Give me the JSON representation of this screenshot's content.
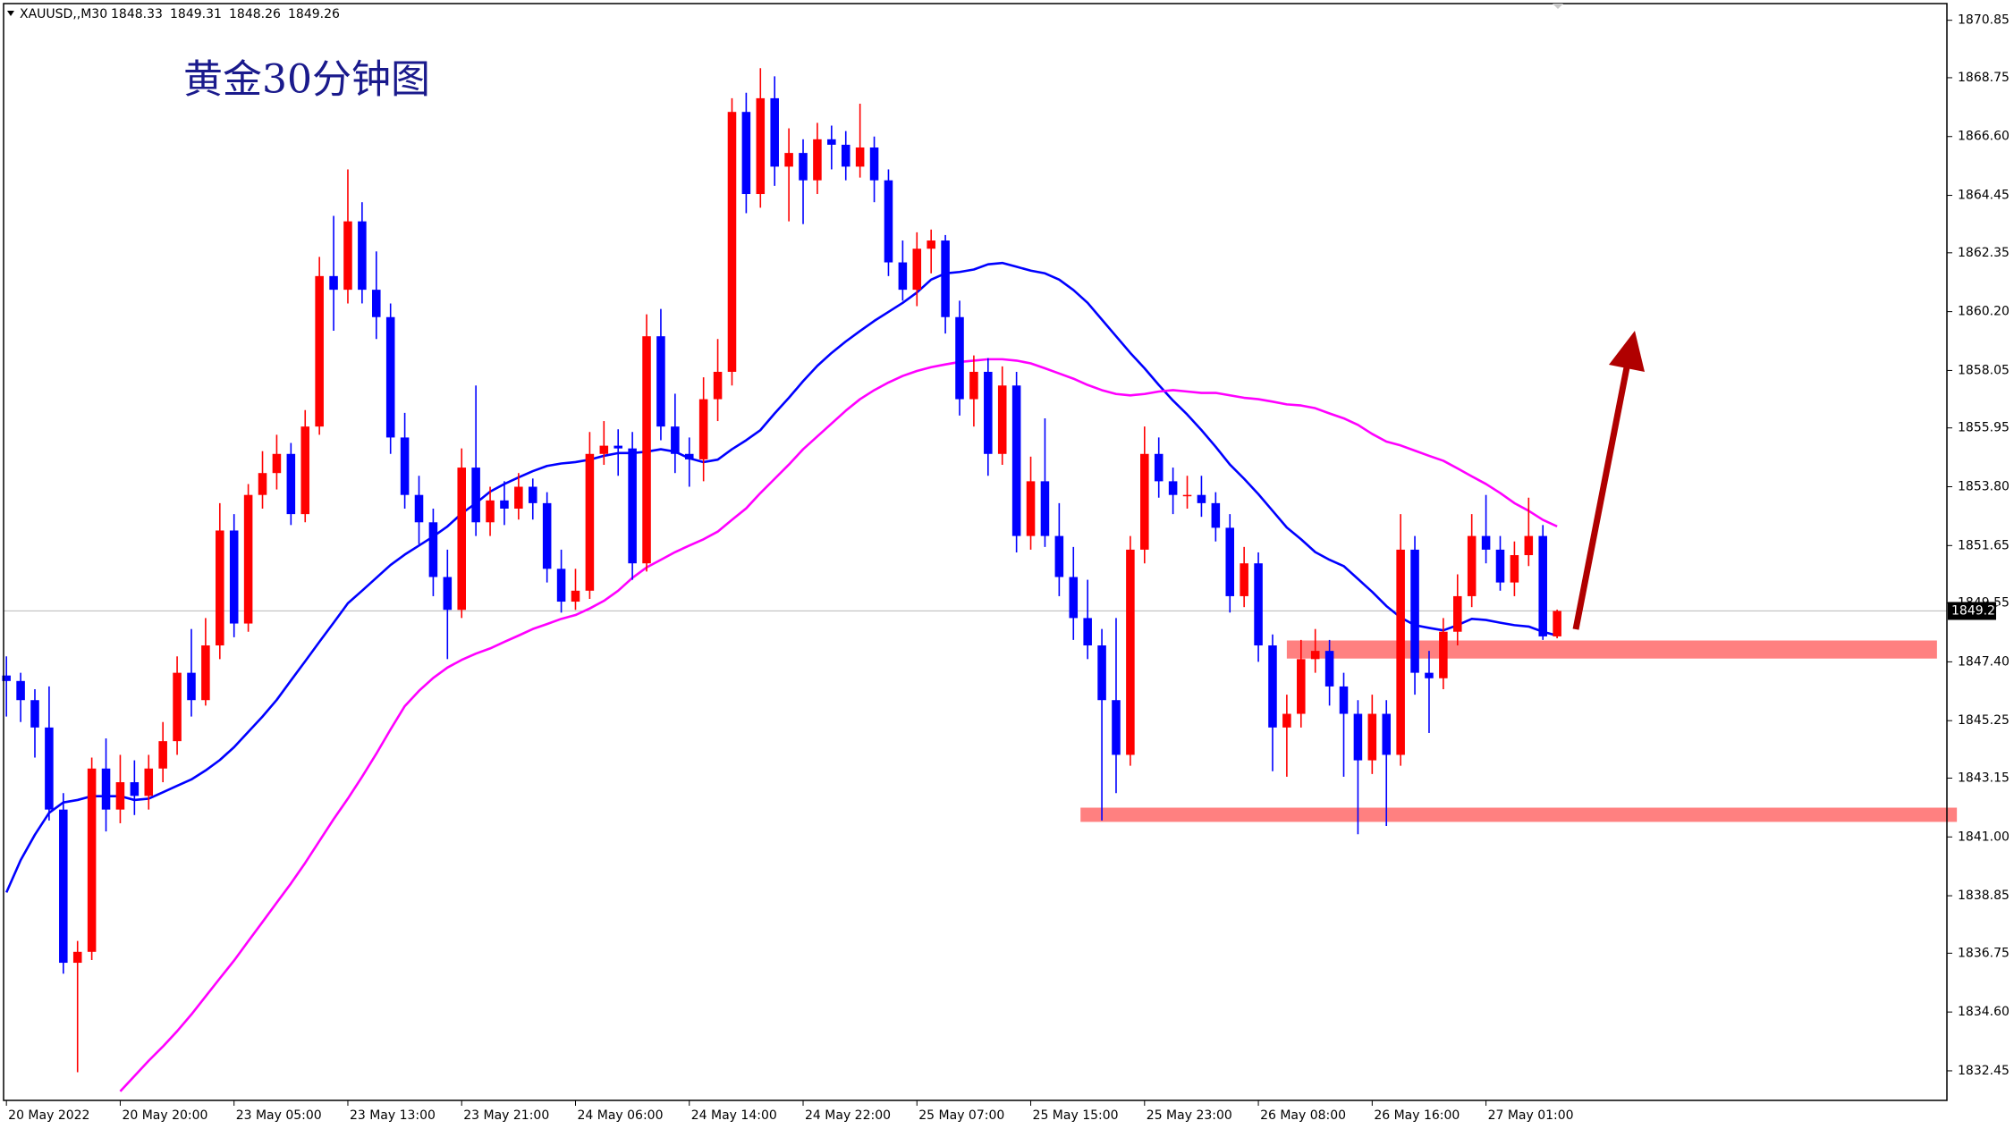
{
  "chart_data": {
    "type": "candlestick",
    "title": "黄金30分钟图",
    "symbol": "XAUUSD,,M30",
    "up_color": "#ff0000",
    "down_color": "#0000ff",
    "xlim": [
      -0.2,
      136.4
    ],
    "xticks": [
      {
        "value": 0,
        "label": "20 May 2022"
      },
      {
        "value": 8,
        "label": "20 May 20:00"
      },
      {
        "value": 16,
        "label": "23 May 05:00"
      },
      {
        "value": 24,
        "label": "23 May 13:00"
      },
      {
        "value": 32,
        "label": "23 May 21:00"
      },
      {
        "value": 40,
        "label": "24 May 06:00"
      },
      {
        "value": 48,
        "label": "24 May 14:00"
      },
      {
        "value": 56,
        "label": "24 May 22:00"
      },
      {
        "value": 64,
        "label": "25 May 07:00"
      },
      {
        "value": 72,
        "label": "25 May 15:00"
      },
      {
        "value": 80,
        "label": "25 May 23:00"
      },
      {
        "value": 88,
        "label": "26 May 08:00"
      },
      {
        "value": 96,
        "label": "26 May 16:00"
      },
      {
        "value": 104,
        "label": "27 May 01:00"
      }
    ],
    "ylim": [
      1831.37,
      1871.46
    ],
    "yticks": [
      1870.85,
      1868.75,
      {
        "value": 1866.6,
        "label": "1866.60"
      },
      1864.45,
      1862.35,
      {
        "value": 1860.2,
        "label": "1860.20"
      },
      1858.05,
      1855.95,
      {
        "value": 1853.8,
        "label": "1853.80"
      },
      1851.65,
      1849.55,
      {
        "value": 1847.4,
        "label": "1847.40"
      },
      1845.25,
      1843.15,
      {
        "value": 1841,
        "label": "1841.00"
      },
      1838.85,
      1836.75,
      {
        "value": 1834.6,
        "label": "1834.60"
      },
      1832.45
    ],
    "ohlc": [
      [
        1846.9,
        1847.6,
        1845.4,
        1846.7
      ],
      [
        1846.7,
        1847.0,
        1845.2,
        1846.0
      ],
      [
        1846.0,
        1846.4,
        1843.9,
        1845.0
      ],
      [
        1845.0,
        1846.5,
        1841.6,
        1842.0
      ],
      [
        1842.0,
        1842.6,
        1836.0,
        1836.4
      ],
      [
        1836.4,
        1837.2,
        1832.4,
        1836.8
      ],
      [
        1836.8,
        1843.9,
        1836.5,
        1843.5
      ],
      [
        1843.5,
        1844.6,
        1841.2,
        1842.0
      ],
      [
        1842.0,
        1844.0,
        1841.5,
        1843.0
      ],
      [
        1843.0,
        1843.8,
        1841.8,
        1842.5
      ],
      [
        1842.5,
        1844.0,
        1842.0,
        1843.5
      ],
      [
        1843.5,
        1845.2,
        1843.0,
        1844.5
      ],
      [
        1844.5,
        1847.6,
        1844.0,
        1847.0
      ],
      [
        1847.0,
        1848.6,
        1845.4,
        1846.0
      ],
      [
        1846.0,
        1849.0,
        1845.8,
        1848.0
      ],
      [
        1848.0,
        1853.2,
        1847.5,
        1852.2
      ],
      [
        1852.2,
        1852.8,
        1848.3,
        1848.8
      ],
      [
        1848.8,
        1853.9,
        1848.5,
        1853.5
      ],
      [
        1853.5,
        1855.1,
        1853.0,
        1854.3
      ],
      [
        1854.3,
        1855.7,
        1853.7,
        1855.0
      ],
      [
        1855.0,
        1855.4,
        1852.4,
        1852.8
      ],
      [
        1852.8,
        1856.6,
        1852.5,
        1856.0
      ],
      [
        1856.0,
        1862.2,
        1855.7,
        1861.5
      ],
      [
        1861.5,
        1863.7,
        1859.5,
        1861.0
      ],
      [
        1861.0,
        1865.4,
        1860.5,
        1863.5
      ],
      [
        1863.5,
        1864.2,
        1860.5,
        1861.0
      ],
      [
        1861.0,
        1862.4,
        1859.2,
        1860.0
      ],
      [
        1860.0,
        1860.5,
        1855.0,
        1855.6
      ],
      [
        1855.6,
        1856.5,
        1853.0,
        1853.5
      ],
      [
        1853.5,
        1854.2,
        1851.7,
        1852.5
      ],
      [
        1852.5,
        1853.0,
        1849.8,
        1850.5
      ],
      [
        1850.5,
        1851.5,
        1847.5,
        1849.3
      ],
      [
        1849.3,
        1855.2,
        1849.0,
        1854.5
      ],
      [
        1854.5,
        1857.5,
        1852.0,
        1852.5
      ],
      [
        1852.5,
        1853.8,
        1852.0,
        1853.3
      ],
      [
        1853.3,
        1854.0,
        1852.4,
        1853.0
      ],
      [
        1853.0,
        1854.3,
        1852.6,
        1853.8
      ],
      [
        1853.8,
        1854.1,
        1852.6,
        1853.2
      ],
      [
        1853.2,
        1853.6,
        1850.3,
        1850.8
      ],
      [
        1850.8,
        1851.5,
        1849.2,
        1849.6
      ],
      [
        1849.6,
        1850.8,
        1849.3,
        1850.0
      ],
      [
        1850.0,
        1855.8,
        1849.7,
        1855.0
      ],
      [
        1855.0,
        1856.2,
        1854.6,
        1855.3
      ],
      [
        1855.3,
        1855.9,
        1854.2,
        1855.2
      ],
      [
        1855.2,
        1855.8,
        1850.4,
        1851.0
      ],
      [
        1851.0,
        1860.1,
        1850.7,
        1859.3
      ],
      [
        1859.3,
        1860.3,
        1855.5,
        1856.0
      ],
      [
        1856.0,
        1857.2,
        1854.3,
        1855.0
      ],
      [
        1855.0,
        1855.6,
        1853.8,
        1854.8
      ],
      [
        1854.8,
        1857.8,
        1854.0,
        1857.0
      ],
      [
        1857.0,
        1859.2,
        1856.2,
        1858.0
      ],
      [
        1858.0,
        1868.0,
        1857.5,
        1867.5
      ],
      [
        1867.5,
        1868.2,
        1863.8,
        1864.5
      ],
      [
        1864.5,
        1869.1,
        1864.0,
        1868.0
      ],
      [
        1868.0,
        1868.8,
        1864.8,
        1865.5
      ],
      [
        1865.5,
        1866.9,
        1863.5,
        1866.0
      ],
      [
        1866.0,
        1866.5,
        1863.4,
        1865.0
      ],
      [
        1865.0,
        1867.1,
        1864.5,
        1866.5
      ],
      [
        1866.5,
        1867.0,
        1865.4,
        1866.3
      ],
      [
        1866.3,
        1866.8,
        1865.0,
        1865.5
      ],
      [
        1865.5,
        1867.8,
        1865.1,
        1866.2
      ],
      [
        1866.2,
        1866.6,
        1864.2,
        1865.0
      ],
      [
        1865.0,
        1865.4,
        1861.5,
        1862.0
      ],
      [
        1862.0,
        1862.8,
        1860.6,
        1861.0
      ],
      [
        1861.0,
        1863.1,
        1860.4,
        1862.5
      ],
      [
        1862.5,
        1863.2,
        1861.6,
        1862.8
      ],
      [
        1862.8,
        1863.0,
        1859.4,
        1860.0
      ],
      [
        1860.0,
        1860.6,
        1856.4,
        1857.0
      ],
      [
        1857.0,
        1858.6,
        1856.0,
        1858.0
      ],
      [
        1858.0,
        1858.5,
        1854.2,
        1855.0
      ],
      [
        1855.0,
        1858.2,
        1854.6,
        1857.5
      ],
      [
        1857.5,
        1858.0,
        1851.4,
        1852.0
      ],
      [
        1852.0,
        1854.9,
        1851.5,
        1854.0
      ],
      [
        1854.0,
        1856.3,
        1851.6,
        1852.0
      ],
      [
        1852.0,
        1853.2,
        1849.8,
        1850.5
      ],
      [
        1850.5,
        1851.6,
        1848.2,
        1849.0
      ],
      [
        1849.0,
        1850.4,
        1847.5,
        1848.0
      ],
      [
        1848.0,
        1848.6,
        1841.6,
        1846.0
      ],
      [
        1846.0,
        1849.0,
        1842.6,
        1844.0
      ],
      [
        1844.0,
        1852.0,
        1843.6,
        1851.5
      ],
      [
        1851.5,
        1856.0,
        1851.0,
        1855.0
      ],
      [
        1855.0,
        1855.6,
        1853.4,
        1854.0
      ],
      [
        1854.0,
        1854.5,
        1852.8,
        1853.5
      ],
      [
        1853.5,
        1854.2,
        1853.0,
        1853.5
      ],
      [
        1853.5,
        1854.2,
        1852.7,
        1853.2
      ],
      [
        1853.2,
        1853.6,
        1851.8,
        1852.3
      ],
      [
        1852.3,
        1852.8,
        1849.2,
        1849.8
      ],
      [
        1849.8,
        1851.6,
        1849.4,
        1851.0
      ],
      [
        1851.0,
        1851.4,
        1847.4,
        1848.0
      ],
      [
        1848.0,
        1848.4,
        1843.4,
        1845.0
      ],
      [
        1845.0,
        1846.2,
        1843.2,
        1845.5
      ],
      [
        1845.5,
        1848.2,
        1845.0,
        1847.5
      ],
      [
        1847.5,
        1848.6,
        1847.0,
        1847.8
      ],
      [
        1847.8,
        1848.2,
        1845.8,
        1846.5
      ],
      [
        1846.5,
        1847.0,
        1843.2,
        1845.5
      ],
      [
        1845.5,
        1846.0,
        1841.1,
        1843.8
      ],
      [
        1843.8,
        1846.2,
        1843.3,
        1845.5
      ],
      [
        1845.5,
        1846.0,
        1841.4,
        1844.0
      ],
      [
        1844.0,
        1852.8,
        1843.6,
        1851.5
      ],
      [
        1851.5,
        1852.0,
        1846.2,
        1847.0
      ],
      [
        1847.0,
        1847.8,
        1844.8,
        1846.8
      ],
      [
        1846.8,
        1849.0,
        1846.4,
        1848.5
      ],
      [
        1848.5,
        1850.6,
        1848.0,
        1849.8
      ],
      [
        1849.8,
        1852.8,
        1849.4,
        1852.0
      ],
      [
        1852.0,
        1853.5,
        1851.0,
        1851.5
      ],
      [
        1851.5,
        1852.0,
        1850.0,
        1850.3
      ],
      [
        1850.3,
        1851.8,
        1849.8,
        1851.3
      ],
      [
        1851.3,
        1853.4,
        1850.9,
        1852.0
      ],
      [
        1852.0,
        1852.4,
        1848.2,
        1848.33
      ],
      [
        1848.33,
        1849.31,
        1848.26,
        1849.26
      ]
    ],
    "series": [
      {
        "color": "#0000ff",
        "values": [
          1838.97,
          1840.15,
          1841.08,
          1841.88,
          1842.26,
          1842.35,
          1842.49,
          1842.49,
          1842.49,
          1842.35,
          1842.4,
          1842.63,
          1842.87,
          1843.1,
          1843.43,
          1843.81,
          1844.28,
          1844.84,
          1845.4,
          1846.01,
          1846.72,
          1847.42,
          1848.13,
          1848.83,
          1849.54,
          1850.0,
          1850.47,
          1850.94,
          1851.32,
          1851.65,
          1851.98,
          1852.35,
          1852.82,
          1853.2,
          1853.62,
          1853.9,
          1854.14,
          1854.37,
          1854.56,
          1854.65,
          1854.7,
          1854.79,
          1854.93,
          1855.03,
          1855.03,
          1855.08,
          1855.17,
          1855.08,
          1854.84,
          1854.7,
          1854.79,
          1855.17,
          1855.5,
          1855.87,
          1856.48,
          1857.05,
          1857.66,
          1858.22,
          1858.69,
          1859.11,
          1859.49,
          1859.86,
          1860.19,
          1860.52,
          1860.9,
          1861.37,
          1861.6,
          1861.65,
          1861.74,
          1861.93,
          1861.98,
          1861.84,
          1861.7,
          1861.6,
          1861.37,
          1860.99,
          1860.52,
          1859.91,
          1859.3,
          1858.69,
          1858.13,
          1857.52,
          1856.95,
          1856.44,
          1855.87,
          1855.26,
          1854.61,
          1854.09,
          1853.53,
          1852.92,
          1852.31,
          1851.88,
          1851.41,
          1851.13,
          1850.9,
          1850.43,
          1849.96,
          1849.44,
          1849.02,
          1848.74,
          1848.64,
          1848.55,
          1848.74,
          1848.97,
          1848.93,
          1848.83,
          1848.74,
          1848.69,
          1848.5,
          1848.36
        ]
      },
      {
        "color": "#ff00ff",
        "values": [
          null,
          null,
          null,
          null,
          null,
          null,
          null,
          null,
          1831.7,
          1832.26,
          1832.82,
          1833.34,
          1833.9,
          1834.51,
          1835.17,
          1835.83,
          1836.48,
          1837.19,
          1837.89,
          1838.6,
          1839.3,
          1840.05,
          1840.85,
          1841.65,
          1842.4,
          1843.2,
          1844.04,
          1844.93,
          1845.78,
          1846.34,
          1846.81,
          1847.19,
          1847.47,
          1847.7,
          1847.89,
          1848.13,
          1848.36,
          1848.6,
          1848.78,
          1848.97,
          1849.11,
          1849.35,
          1849.63,
          1850.0,
          1850.47,
          1850.85,
          1851.13,
          1851.41,
          1851.65,
          1851.88,
          1852.16,
          1852.59,
          1853.01,
          1853.57,
          1854.09,
          1854.61,
          1855.17,
          1855.64,
          1856.11,
          1856.58,
          1857.0,
          1857.33,
          1857.61,
          1857.85,
          1858.03,
          1858.17,
          1858.27,
          1858.36,
          1858.41,
          1858.46,
          1858.46,
          1858.41,
          1858.31,
          1858.13,
          1857.94,
          1857.75,
          1857.52,
          1857.33,
          1857.19,
          1857.14,
          1857.19,
          1857.28,
          1857.33,
          1857.28,
          1857.23,
          1857.23,
          1857.14,
          1857.05,
          1857.0,
          1856.91,
          1856.81,
          1856.77,
          1856.67,
          1856.48,
          1856.3,
          1856.06,
          1855.73,
          1855.45,
          1855.31,
          1855.12,
          1854.93,
          1854.75,
          1854.47,
          1854.18,
          1853.9,
          1853.57,
          1853.2,
          1852.92,
          1852.59,
          1852.35
        ]
      }
    ],
    "zones": [
      {
        "start": 90,
        "end": 135.7,
        "low": 1847.52,
        "high": 1848.18,
        "color": "#ff8080"
      },
      {
        "start": 75.5,
        "end": 137.1,
        "low": 1841.55,
        "high": 1842.07,
        "color": "#ff8080"
      }
    ]
  }
}
